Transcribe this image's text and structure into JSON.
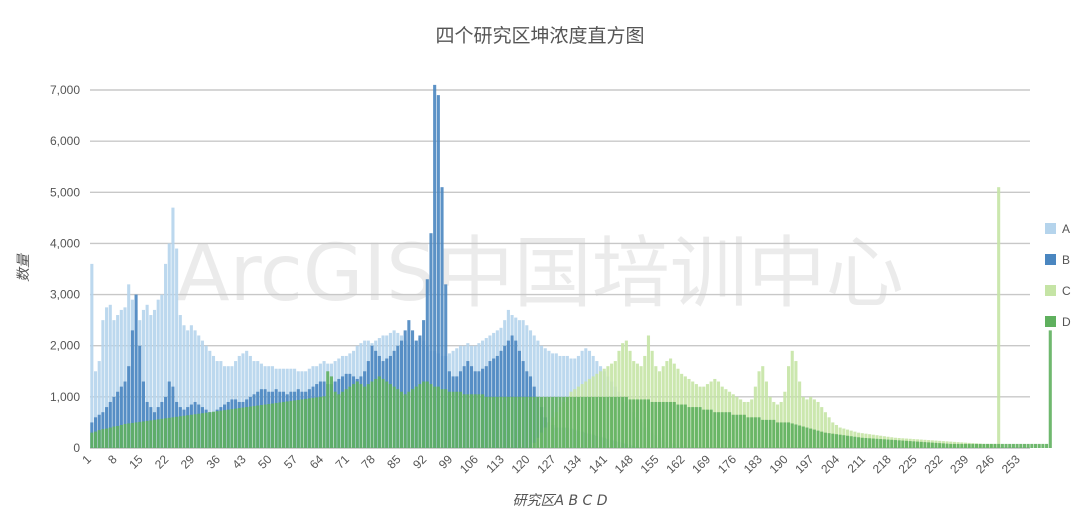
{
  "chart_data": {
    "type": "bar",
    "title": "四个研究区坤浓度直方图",
    "xlabel": "研究区A B C D",
    "ylabel": "数量",
    "ylim": [
      0,
      7000
    ],
    "yticks": [
      "0",
      "1,000",
      "2,000",
      "3,000",
      "4,000",
      "5,000",
      "6,000",
      "7,000"
    ],
    "x_range": [
      1,
      255
    ],
    "xtick_labels": [
      "1",
      "8",
      "15",
      "22",
      "29",
      "36",
      "43",
      "50",
      "57",
      "64",
      "71",
      "78",
      "85",
      "92",
      "99",
      "106",
      "113",
      "120",
      "127",
      "134",
      "141",
      "148",
      "155",
      "162",
      "169",
      "176",
      "183",
      "190",
      "197",
      "204",
      "211",
      "218",
      "225",
      "232",
      "239",
      "246",
      "253"
    ],
    "grid": "horizontal",
    "legend_position": "right",
    "watermark": "ArcGIS中国培训中心",
    "series": [
      {
        "name": "A",
        "color": "#b5d4ec",
        "values": [
          3600,
          1500,
          1700,
          2500,
          2750,
          2800,
          2500,
          2600,
          2700,
          2750,
          3200,
          2900,
          2700,
          2500,
          2700,
          2800,
          2600,
          2700,
          2900,
          3000,
          3600,
          4000,
          4700,
          3900,
          2600,
          2400,
          2300,
          2400,
          2300,
          2200,
          2100,
          2000,
          1900,
          1800,
          1700,
          1700,
          1600,
          1600,
          1600,
          1700,
          1800,
          1850,
          1900,
          1800,
          1700,
          1700,
          1650,
          1600,
          1600,
          1600,
          1550,
          1550,
          1550,
          1550,
          1550,
          1550,
          1500,
          1500,
          1500,
          1550,
          1600,
          1600,
          1650,
          1700,
          1650,
          1650,
          1700,
          1750,
          1800,
          1800,
          1850,
          1900,
          2000,
          2050,
          2100,
          2100,
          2050,
          2100,
          2150,
          2200,
          2200,
          2250,
          2300,
          2250,
          2200,
          2100,
          2000,
          2000,
          2100,
          2150,
          2100,
          2000,
          1900,
          1900,
          1850,
          1800,
          1800,
          1850,
          1900,
          1950,
          2000,
          2000,
          2050,
          2000,
          2000,
          2050,
          2100,
          2150,
          2200,
          2250,
          2300,
          2350,
          2500,
          2700,
          2600,
          2550,
          2500,
          2500,
          2400,
          2300,
          2200,
          2100,
          2000,
          1950,
          1900,
          1850,
          1850,
          1800,
          1800,
          1800,
          1750,
          1750,
          1800,
          1900,
          1950,
          1900,
          1800,
          1700,
          1600,
          1500,
          1400,
          1300,
          1200,
          1100,
          1000,
          900,
          800,
          700,
          600,
          500,
          400,
          350,
          300,
          250,
          200,
          150,
          120,
          100,
          80,
          60,
          50,
          40,
          30,
          20,
          10,
          0,
          0,
          0,
          0,
          0,
          0,
          0,
          0,
          0,
          0,
          0,
          0,
          0,
          0,
          0,
          0,
          0,
          0,
          0,
          0,
          0,
          0,
          0,
          0,
          0,
          0,
          0,
          0,
          0,
          0,
          0,
          0,
          0,
          0,
          0,
          0,
          0,
          0,
          0,
          0,
          0,
          0,
          0,
          0,
          0,
          0,
          0,
          0,
          0,
          0,
          0,
          0,
          0,
          0,
          0,
          0,
          0,
          0,
          0,
          0,
          0,
          0,
          0,
          0,
          0,
          0,
          0,
          0,
          0,
          0,
          0,
          0,
          0,
          0,
          0,
          0,
          0,
          0,
          0,
          0,
          0,
          0,
          0,
          0,
          0,
          0,
          0,
          0,
          0,
          0,
          0,
          0,
          0,
          0,
          0,
          0,
          0,
          0,
          0,
          0,
          0,
          0,
          0,
          0,
          0,
          0,
          0,
          0,
          0,
          0,
          0,
          0,
          0,
          0,
          0,
          0,
          0,
          0,
          0,
          0,
          0,
          0,
          0,
          0,
          0,
          0,
          0,
          0,
          0,
          0,
          0,
          0,
          0,
          0,
          0,
          0,
          0,
          0,
          0,
          0,
          0,
          0,
          0,
          0,
          0
        ]
      },
      {
        "name": "B",
        "color": "#4a86c0",
        "values": [
          500,
          600,
          650,
          700,
          800,
          900,
          1000,
          1100,
          1200,
          1300,
          1600,
          2300,
          3000,
          2000,
          1300,
          900,
          800,
          700,
          800,
          900,
          1000,
          1300,
          1200,
          900,
          800,
          750,
          800,
          850,
          900,
          850,
          800,
          750,
          700,
          700,
          750,
          800,
          850,
          900,
          950,
          950,
          900,
          900,
          950,
          1000,
          1050,
          1100,
          1150,
          1150,
          1100,
          1100,
          1150,
          1100,
          1100,
          1050,
          1100,
          1100,
          1150,
          1100,
          1100,
          1150,
          1200,
          1250,
          1300,
          1300,
          1250,
          1250,
          1300,
          1350,
          1400,
          1450,
          1450,
          1400,
          1350,
          1400,
          1500,
          1700,
          2000,
          1900,
          1800,
          1700,
          1750,
          1800,
          1900,
          2000,
          2100,
          2300,
          2500,
          2300,
          2100,
          2200,
          2500,
          3300,
          4200,
          7100,
          6900,
          5100,
          3200,
          1500,
          1400,
          1400,
          1500,
          1600,
          1700,
          1600,
          1500,
          1500,
          1550,
          1600,
          1700,
          1750,
          1800,
          1900,
          2000,
          2100,
          2200,
          2100,
          1900,
          1700,
          1500,
          1400,
          1200,
          1000,
          800,
          600,
          500,
          450,
          400,
          400,
          400,
          400,
          380,
          360,
          340,
          320,
          300,
          280,
          260,
          240,
          220,
          200,
          180,
          160,
          140,
          120,
          100,
          80,
          60,
          40,
          20,
          0,
          0,
          0,
          0,
          0,
          0,
          0,
          0,
          0,
          0,
          0,
          0,
          0,
          0,
          0,
          0,
          0,
          0,
          0,
          0,
          0,
          0,
          0,
          0,
          0,
          0,
          0,
          0,
          0,
          0,
          0,
          0,
          0,
          0,
          0,
          0,
          0,
          0,
          0,
          0,
          0,
          0,
          0,
          0,
          0,
          0,
          0,
          0,
          0,
          0,
          0,
          0,
          0,
          0,
          0,
          0,
          0,
          0,
          0,
          0,
          0,
          0,
          0,
          0,
          0,
          0,
          0,
          0,
          0,
          0,
          0,
          0,
          0,
          0,
          0,
          0,
          0,
          0,
          0,
          0,
          0,
          0,
          0,
          0,
          0,
          0,
          0,
          0,
          0,
          0,
          0,
          0,
          0,
          0,
          0,
          0,
          0,
          0,
          0,
          0,
          0,
          0,
          0,
          0,
          0,
          0,
          0,
          0,
          0,
          0,
          0,
          0,
          0,
          0,
          0,
          0,
          0,
          0,
          0,
          0,
          0,
          0,
          0,
          0,
          0,
          0,
          0,
          0,
          0,
          0,
          0,
          0,
          0,
          0,
          0,
          0,
          0,
          0,
          0,
          0,
          0,
          0,
          0,
          0,
          0,
          0,
          0,
          0,
          0,
          0,
          0,
          0,
          0,
          0,
          0,
          0,
          0,
          0,
          0,
          0,
          0,
          0
        ]
      },
      {
        "name": "C",
        "color": "#c5e4a5",
        "values": [
          0,
          0,
          0,
          0,
          0,
          0,
          0,
          0,
          0,
          0,
          0,
          0,
          0,
          0,
          0,
          0,
          0,
          0,
          0,
          0,
          0,
          0,
          0,
          0,
          0,
          0,
          0,
          0,
          0,
          0,
          0,
          0,
          0,
          0,
          0,
          0,
          0,
          0,
          0,
          0,
          0,
          0,
          0,
          0,
          0,
          0,
          0,
          0,
          0,
          0,
          0,
          0,
          0,
          0,
          0,
          0,
          0,
          0,
          0,
          0,
          0,
          0,
          0,
          0,
          0,
          0,
          0,
          0,
          0,
          0,
          0,
          0,
          0,
          0,
          0,
          0,
          0,
          0,
          0,
          0,
          0,
          0,
          0,
          0,
          0,
          0,
          0,
          0,
          0,
          0,
          0,
          0,
          0,
          0,
          0,
          0,
          0,
          0,
          0,
          0,
          0,
          0,
          0,
          0,
          0,
          0,
          0,
          0,
          0,
          0,
          0,
          0,
          0,
          0,
          0,
          0,
          0,
          0,
          0,
          0,
          100,
          200,
          300,
          400,
          500,
          600,
          700,
          800,
          900,
          1000,
          1100,
          1150,
          1200,
          1250,
          1300,
          1350,
          1400,
          1450,
          1500,
          1550,
          1600,
          1650,
          1700,
          1900,
          2050,
          2100,
          1900,
          1700,
          1650,
          1600,
          1800,
          2200,
          1900,
          1600,
          1500,
          1600,
          1700,
          1750,
          1650,
          1550,
          1450,
          1400,
          1350,
          1300,
          1250,
          1200,
          1200,
          1250,
          1300,
          1350,
          1300,
          1200,
          1150,
          1100,
          1050,
          1000,
          950,
          900,
          900,
          950,
          1200,
          1500,
          1600,
          1300,
          1000,
          900,
          850,
          900,
          1100,
          1600,
          1900,
          1700,
          1300,
          1000,
          950,
          1000,
          950,
          900,
          800,
          700,
          600,
          500,
          450,
          400,
          380,
          360,
          340,
          320,
          300,
          290,
          280,
          270,
          260,
          250,
          240,
          230,
          220,
          210,
          200,
          195,
          190,
          185,
          180,
          175,
          170,
          165,
          160,
          155,
          150,
          145,
          140,
          135,
          130,
          125,
          120,
          115,
          110,
          105,
          100,
          95,
          90,
          85,
          80,
          80,
          80,
          80,
          5100
        ]
      },
      {
        "name": "D",
        "color": "#5fb05e",
        "values": [
          300,
          320,
          350,
          370,
          380,
          400,
          420,
          430,
          450,
          470,
          480,
          490,
          500,
          510,
          520,
          530,
          540,
          550,
          560,
          570,
          580,
          590,
          600,
          610,
          620,
          630,
          640,
          650,
          660,
          670,
          680,
          690,
          700,
          710,
          720,
          730,
          740,
          750,
          760,
          770,
          780,
          790,
          800,
          810,
          820,
          830,
          840,
          850,
          860,
          870,
          880,
          890,
          900,
          910,
          920,
          930,
          940,
          950,
          960,
          970,
          980,
          990,
          1000,
          1010,
          1500,
          1400,
          1100,
          1050,
          1100,
          1150,
          1200,
          1250,
          1300,
          1250,
          1200,
          1250,
          1300,
          1350,
          1400,
          1350,
          1300,
          1250,
          1200,
          1150,
          1100,
          1050,
          1100,
          1150,
          1200,
          1250,
          1300,
          1300,
          1250,
          1200,
          1200,
          1150,
          1150,
          1100,
          1100,
          1100,
          1100,
          1050,
          1050,
          1050,
          1050,
          1050,
          1050,
          1000,
          1000,
          1000,
          1000,
          1000,
          1000,
          1000,
          1000,
          1000,
          1000,
          1000,
          1000,
          1000,
          1000,
          1000,
          1000,
          1000,
          1000,
          1000,
          1000,
          1000,
          1000,
          1000,
          1000,
          1000,
          1000,
          1000,
          1000,
          1000,
          1000,
          1000,
          1000,
          1000,
          1000,
          1000,
          1000,
          1000,
          1000,
          1000,
          950,
          950,
          950,
          950,
          950,
          950,
          900,
          900,
          900,
          900,
          900,
          900,
          900,
          850,
          850,
          850,
          800,
          800,
          800,
          800,
          750,
          750,
          750,
          700,
          700,
          700,
          700,
          700,
          650,
          650,
          650,
          650,
          600,
          600,
          600,
          600,
          550,
          550,
          550,
          550,
          500,
          500,
          500,
          500,
          480,
          460,
          440,
          420,
          400,
          380,
          360,
          340,
          320,
          300,
          290,
          280,
          270,
          260,
          250,
          240,
          230,
          220,
          210,
          200,
          195,
          190,
          185,
          180,
          175,
          170,
          165,
          160,
          155,
          150,
          145,
          140,
          135,
          130,
          125,
          120,
          115,
          110,
          105,
          100,
          95,
          90,
          85,
          80,
          80,
          80,
          80,
          80,
          80,
          80,
          80,
          80,
          80,
          80,
          80,
          80,
          80,
          80,
          80,
          80,
          80,
          80,
          80,
          80,
          80,
          80,
          80,
          80,
          80,
          80,
          2300
        ]
      }
    ]
  }
}
